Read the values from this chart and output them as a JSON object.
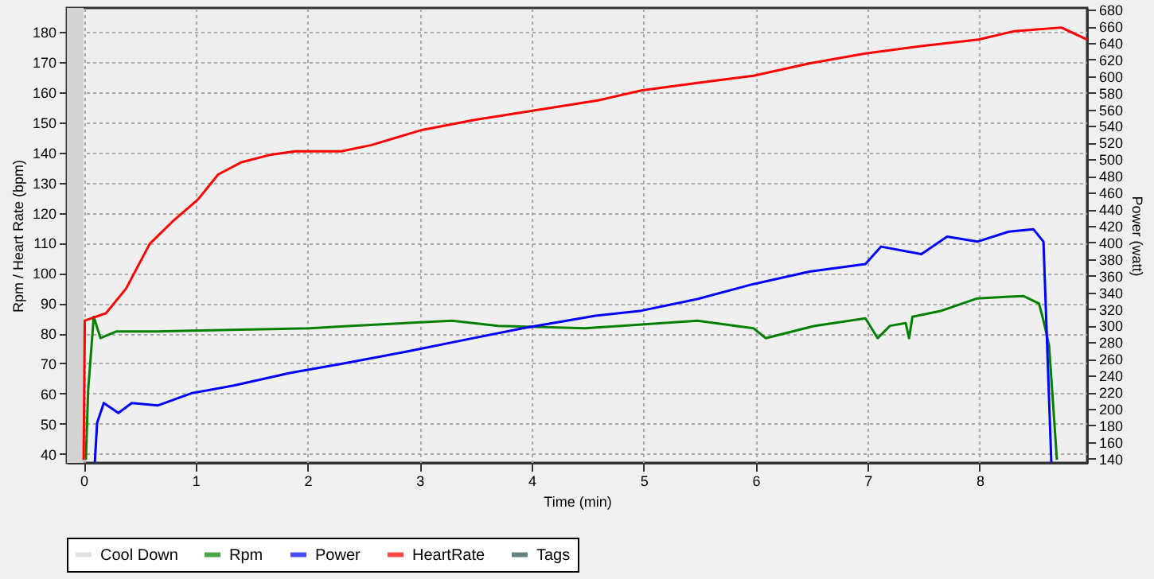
{
  "chart_data": {
    "type": "line",
    "xlabel": "Time (min)",
    "ylabel": "Rpm / Heart Rate (bpm)",
    "y2label": "Power (watt)",
    "xlim": [
      -0.15,
      8.96
    ],
    "xticks": [
      0,
      1,
      2,
      3,
      4,
      5,
      6,
      7,
      8
    ],
    "ylim": [
      37,
      188
    ],
    "yticks": [
      40,
      50,
      60,
      70,
      80,
      90,
      100,
      110,
      120,
      130,
      140,
      150,
      160,
      170,
      180
    ],
    "y2lim": [
      135,
      682
    ],
    "y2ticks": [
      140,
      160,
      180,
      200,
      220,
      240,
      260,
      280,
      300,
      320,
      340,
      360,
      380,
      400,
      420,
      440,
      460,
      480,
      500,
      520,
      540,
      560,
      580,
      600,
      620,
      640,
      660,
      680
    ],
    "grid": true,
    "legend": "bottom",
    "bands": [
      {
        "axis": "x",
        "from": -0.15,
        "to": 0,
        "label": "Cool Down",
        "color": "#d3d3d3"
      }
    ],
    "series": [
      {
        "name": "Rpm",
        "color": "#008000",
        "x": [
          0.02,
          0.04,
          0.09,
          0.15,
          0.29,
          0.66,
          0.97,
          2.02,
          2.39,
          3.29,
          3.7,
          4.48,
          5.48,
          5.98,
          6.09,
          6.53,
          6.98,
          7.09,
          7.2,
          7.34,
          7.37,
          7.4,
          7.66,
          7.98,
          8.39,
          8.53,
          8.57,
          8.62,
          8.69
        ],
        "values": [
          38,
          61,
          85.5,
          78.4,
          80.6,
          80.6,
          80.9,
          81.7,
          82.5,
          84.2,
          82.5,
          81.7,
          84.2,
          81.7,
          78.4,
          82.5,
          85,
          78.4,
          82.5,
          83.4,
          78.4,
          85.5,
          87.5,
          91.6,
          92.4,
          89.9,
          84.2,
          76,
          38
        ]
      },
      {
        "name": "Power",
        "color": "#0000ff",
        "axis": "y2",
        "x": [
          0.1,
          0.12,
          0.18,
          0.31,
          0.43,
          0.66,
          0.97,
          1.34,
          1.84,
          2.34,
          2.93,
          3.48,
          3.93,
          4.57,
          4.98,
          5.48,
          5.98,
          6.48,
          6.98,
          7.12,
          7.48,
          7.71,
          7.98,
          8.26,
          8.48,
          8.57,
          8.64
        ],
        "values": [
          136,
          183,
          207,
          195,
          207,
          204,
          219,
          228,
          243,
          255,
          270,
          285,
          297,
          312,
          318,
          332,
          350,
          365,
          374,
          395,
          386,
          407,
          401,
          413,
          416,
          401,
          136
        ]
      },
      {
        "name": "HeartRate",
        "color": "#ff0000",
        "x": [
          0,
          0.01,
          0.2,
          0.38,
          0.59,
          0.79,
          1.02,
          1.2,
          1.41,
          1.66,
          1.89,
          2.3,
          2.57,
          3.02,
          3.48,
          4.03,
          4.59,
          4.98,
          5.48,
          5.98,
          6.48,
          6.98,
          7.49,
          7.99,
          8.31,
          8.73,
          8.96
        ],
        "values": [
          38,
          84.2,
          86.7,
          94.9,
          109.7,
          117,
          124.4,
          132.7,
          136.8,
          139.2,
          140.4,
          140.4,
          142.5,
          147.5,
          150.8,
          154,
          157.3,
          160.6,
          163.1,
          165.5,
          169.6,
          172.9,
          175.4,
          177.5,
          180.3,
          181.5,
          177.5
        ]
      },
      {
        "name": "Tags",
        "type": "scatter",
        "color": "#1f5050"
      }
    ]
  }
}
